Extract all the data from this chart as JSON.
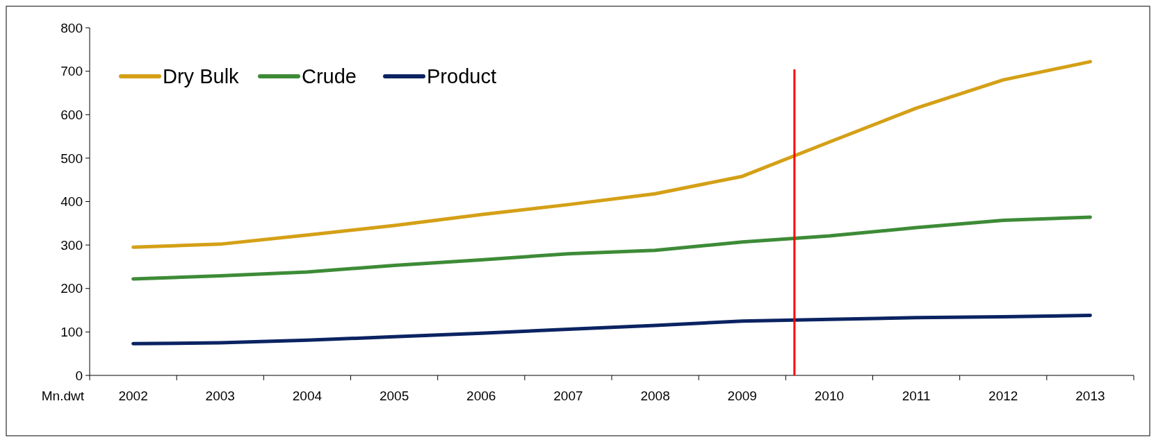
{
  "chart_data": {
    "type": "line",
    "ylabel": "Mn.dwt",
    "x": [
      2002,
      2003,
      2004,
      2005,
      2006,
      2007,
      2008,
      2009,
      2010,
      2011,
      2012,
      2013
    ],
    "xlim": [
      2001.5,
      2013.5
    ],
    "xticks": [
      2002,
      2003,
      2004,
      2005,
      2006,
      2007,
      2008,
      2009,
      2010,
      2011,
      2012,
      2013
    ],
    "ylim": [
      0,
      800
    ],
    "yticks": [
      0,
      100,
      200,
      300,
      400,
      500,
      600,
      700,
      800
    ],
    "grid": false,
    "legend": "top left",
    "marker": "none",
    "line_style": "solid",
    "series": [
      {
        "name": "Dry Bulk",
        "color": "#d4a017",
        "values": [
          295,
          302,
          323,
          345,
          370,
          393,
          418,
          458,
          537,
          615,
          680,
          722
        ]
      },
      {
        "name": "Crude",
        "color": "#3d8b37",
        "values": [
          222,
          229,
          238,
          253,
          266,
          280,
          288,
          307,
          321,
          340,
          357,
          364
        ]
      },
      {
        "name": "Product",
        "color": "#0b2361",
        "values": [
          73,
          75,
          81,
          89,
          97,
          106,
          115,
          125,
          129,
          133,
          135,
          138
        ]
      }
    ],
    "ref_lines": [
      {
        "axis": "x",
        "value": 2009.6,
        "color": "#ff0000"
      }
    ]
  }
}
